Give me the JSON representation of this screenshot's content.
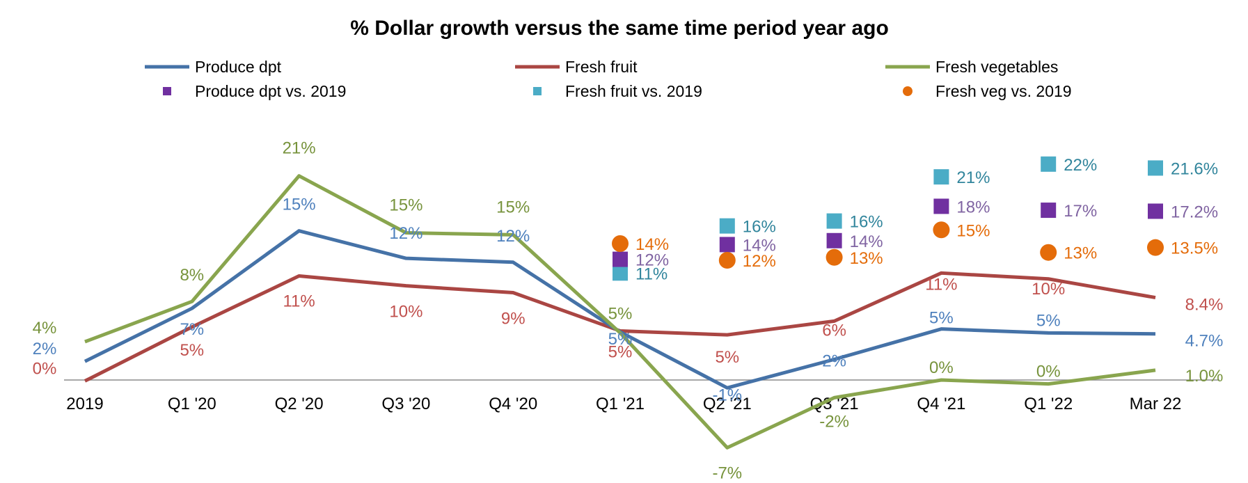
{
  "chart_data": {
    "type": "line",
    "title": "% Dollar growth versus the same time period year ago",
    "categories": [
      "2019",
      "Q1 '20",
      "Q2 '20",
      "Q3 '20",
      "Q4 '20",
      "Q1 '21",
      "Q2 '21",
      "Q3 '21",
      "Q4 '21",
      "Q1 '22",
      "Mar 22"
    ],
    "ylim": [
      -8,
      23
    ],
    "legend_position": "top",
    "series": [
      {
        "name": "Produce dpt",
        "kind": "line",
        "color": "#4572A7",
        "label_color": "#4F81BD",
        "values": [
          1.9,
          7.3,
          15.2,
          12.4,
          12.0,
          4.9,
          -0.8,
          2.1,
          5.2,
          4.8,
          4.7
        ],
        "labels": [
          "2%",
          "7%",
          "15%",
          "12%",
          "12%",
          "5%",
          "-1%",
          "2%",
          "5%",
          "5%",
          "4.7%"
        ]
      },
      {
        "name": "Fresh fruit",
        "kind": "line",
        "color": "#AA4643",
        "label_color": "#C0504D",
        "values": [
          -0.1,
          5.4,
          10.6,
          9.6,
          8.9,
          5.0,
          4.6,
          6.0,
          10.9,
          10.3,
          8.4
        ],
        "labels": [
          "0%",
          "5%",
          "11%",
          "10%",
          "9%",
          "5%",
          "5%",
          "6%",
          "11%",
          "10%",
          "8.4%"
        ]
      },
      {
        "name": "Fresh vegetables",
        "kind": "line",
        "color": "#89A54E",
        "label_color": "#77933C",
        "values": [
          3.9,
          8.0,
          20.8,
          15.0,
          14.8,
          4.8,
          -6.9,
          -1.8,
          0.0,
          -0.4,
          1.0
        ],
        "labels": [
          "4%",
          "8%",
          "21%",
          "15%",
          "15%",
          "5%",
          "-7%",
          "-2%",
          "0%",
          "0%",
          "1.0%"
        ]
      },
      {
        "name": "Produce dpt vs. 2019",
        "kind": "marker",
        "marker": "square",
        "color": "#7030A0",
        "label_color": "#8064A2",
        "values": [
          null,
          null,
          null,
          null,
          null,
          12.3,
          13.8,
          14.2,
          17.7,
          17.3,
          17.2
        ],
        "labels": [
          "",
          "",
          "",
          "",
          "",
          "12%",
          "14%",
          "14%",
          "18%",
          "17%",
          "17.2%"
        ]
      },
      {
        "name": "Fresh fruit vs. 2019",
        "kind": "marker",
        "marker": "square",
        "color": "#4BACC6",
        "label_color": "#31859C",
        "values": [
          null,
          null,
          null,
          null,
          null,
          10.9,
          15.7,
          16.2,
          20.7,
          22.0,
          21.6
        ],
        "labels": [
          "",
          "",
          "",
          "",
          "",
          "11%",
          "16%",
          "16%",
          "21%",
          "22%",
          "21.6%"
        ]
      },
      {
        "name": "Fresh veg vs. 2019",
        "kind": "marker",
        "marker": "circle",
        "color": "#E46C0A",
        "label_color": "#E46C0A",
        "values": [
          null,
          null,
          null,
          null,
          null,
          13.9,
          12.2,
          12.5,
          15.3,
          13.0,
          13.5
        ],
        "labels": [
          "",
          "",
          "",
          "",
          "",
          "14%",
          "12%",
          "13%",
          "15%",
          "13%",
          "13.5%"
        ]
      }
    ]
  }
}
